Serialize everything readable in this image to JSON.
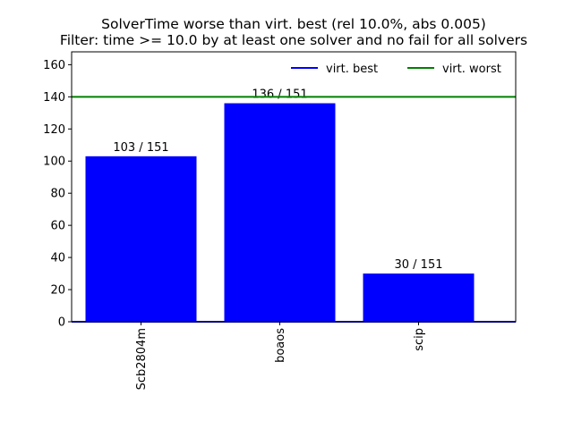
{
  "chart_data": {
    "type": "bar",
    "title_line1": "SolverTime worse than virt. best (rel 10.0%, abs 0.005)",
    "title_line2": "Filter: time >= 10.0 by at least one solver and no fail for all solvers",
    "categories": [
      "Scb2804m",
      "boaos",
      "scip"
    ],
    "values": [
      103,
      136,
      30
    ],
    "bar_labels": [
      "103 / 151",
      "136 / 151",
      "30 / 151"
    ],
    "ylim": [
      0,
      168
    ],
    "yticks": [
      0,
      20,
      40,
      60,
      80,
      100,
      120,
      140,
      160
    ],
    "bar_color": "#0000ff",
    "reference_lines": [
      {
        "name": "virt. best",
        "value": 0,
        "color": "#0000ff"
      },
      {
        "name": "virt. worst",
        "value": 140,
        "color": "#008000"
      }
    ],
    "legend_position": "upper-right",
    "grid": false
  }
}
